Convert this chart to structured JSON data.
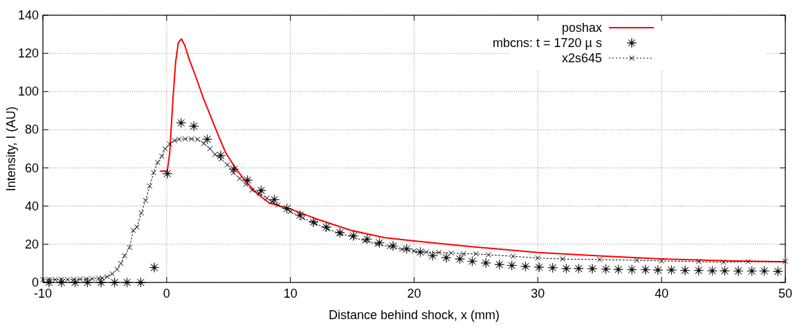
{
  "chart_data": {
    "type": "line",
    "xlabel": "Distance behind shock, x (mm)",
    "ylabel": "Intensity, I (AU)",
    "xlim": [
      -10,
      50
    ],
    "ylim": [
      0,
      140
    ],
    "xticks": [
      -10,
      0,
      10,
      20,
      30,
      40,
      50
    ],
    "yticks": [
      0,
      20,
      40,
      60,
      80,
      100,
      120,
      140
    ],
    "grid": true,
    "legend": "top right",
    "series": [
      {
        "name": "poshax",
        "type": "line",
        "color": "#ff0000",
        "line_style": "solid",
        "marker": "none",
        "x": [
          -0.5,
          0.05,
          0.25,
          0.5,
          0.72,
          0.94,
          1.19,
          1.46,
          1.82,
          2.4,
          3.0,
          3.6,
          4.2,
          4.75,
          5.5,
          6.3,
          7.3,
          8.3,
          10,
          12.1,
          14.9,
          17.6,
          20,
          24.6,
          30,
          35.7,
          40,
          45.4,
          50
        ],
        "values": [
          58.3,
          58.3,
          68,
          95,
          115,
          125.5,
          127.6,
          124.3,
          117,
          107,
          96,
          86.4,
          76.7,
          68.3,
          60.5,
          53.6,
          46.6,
          41.6,
          38.5,
          33.3,
          27.3,
          23.5,
          21.8,
          18.8,
          15.7,
          13.7,
          12.3,
          11.3,
          10.8
        ]
      },
      {
        "name": "mbcns: t = 1720 µ s",
        "type": "scatter",
        "color": "#000000",
        "marker": "star",
        "x": [
          -9.5,
          -8.5,
          -7.4,
          -6.4,
          -5.3,
          -4.2,
          -3.2,
          -2.1,
          -1.0,
          0.06,
          1.17,
          2.2,
          3.28,
          4.36,
          5.43,
          6.54,
          7.64,
          8.71,
          9.72,
          10.78,
          11.86,
          12.9,
          14.0,
          15.1,
          16.2,
          17.2,
          18.3,
          19.4,
          20.5,
          21.5,
          22.6,
          23.7,
          24.7,
          25.8,
          26.9,
          27.9,
          29.0,
          30.1,
          31.2,
          32.3,
          33.3,
          34.4,
          35.5,
          36.5,
          37.6,
          38.7,
          39.7,
          40.8,
          41.9,
          43.0,
          44.1,
          45.1,
          46.2,
          47.3,
          48.3,
          49.4
        ],
        "values": [
          0,
          0,
          0,
          0,
          0,
          0,
          0,
          0,
          7.8,
          57,
          83.6,
          81.9,
          75,
          66.5,
          59.3,
          53.6,
          48.2,
          43.4,
          38.7,
          35.3,
          31.6,
          29,
          26.1,
          24.4,
          22.7,
          20.8,
          19.1,
          17.6,
          15.9,
          14,
          13,
          12.3,
          11.1,
          10.2,
          9.4,
          8.9,
          8.4,
          8.0,
          7.7,
          7.3,
          7.3,
          7.2,
          7.0,
          6.8,
          6.7,
          6.7,
          6.5,
          6.5,
          6.3,
          6.3,
          6.1,
          6.1,
          6.0,
          6.0,
          6.0,
          5.8
        ]
      },
      {
        "name": "x2s645",
        "type": "line",
        "color": "#000000",
        "line_style": "dotted",
        "marker": "cross",
        "x": [
          -10,
          -9.5,
          -9,
          -8.5,
          -8,
          -7.5,
          -7,
          -6.5,
          -6,
          -5.5,
          -5.2,
          -4.8,
          -4.4,
          -4.0,
          -3.7,
          -3.4,
          -3.0,
          -2.7,
          -2.4,
          -2.05,
          -1.7,
          -1.37,
          -1.05,
          -0.72,
          -0.39,
          -0.12,
          0.25,
          0.64,
          1.0,
          1.5,
          2.0,
          2.5,
          3.0,
          3.5,
          3.9,
          4.4,
          4.9,
          5.4,
          5.9,
          6.4,
          6.9,
          7.5,
          8.1,
          8.5,
          9.0,
          10,
          11,
          12,
          13,
          14,
          15,
          16,
          17,
          18,
          19,
          20,
          21,
          22,
          23,
          24,
          25,
          26,
          28,
          30,
          32,
          35,
          38,
          40,
          43,
          45,
          47,
          50
        ],
        "values": [
          1.5,
          1.5,
          1.5,
          1.5,
          1.5,
          1.6,
          1.7,
          1.8,
          1.9,
          2.1,
          2.3,
          3.0,
          4.5,
          6.9,
          10,
          14,
          18.3,
          27.3,
          29,
          36.4,
          43,
          50.5,
          57.5,
          62.9,
          66.1,
          70,
          72.5,
          74.3,
          75,
          75.2,
          75.2,
          75,
          72.8,
          70.1,
          67.1,
          64.7,
          61.7,
          57.5,
          54.5,
          51.4,
          48.4,
          46.6,
          44.2,
          42.4,
          40.6,
          37.2,
          33.8,
          31,
          28,
          25.6,
          23.9,
          21.8,
          20.1,
          18.8,
          17.4,
          16.5,
          15.9,
          15.7,
          15.4,
          15,
          15,
          14.5,
          13.7,
          12.8,
          12.3,
          12,
          11.6,
          11.3,
          10.9,
          10.6,
          10.9,
          11.1
        ]
      }
    ]
  }
}
